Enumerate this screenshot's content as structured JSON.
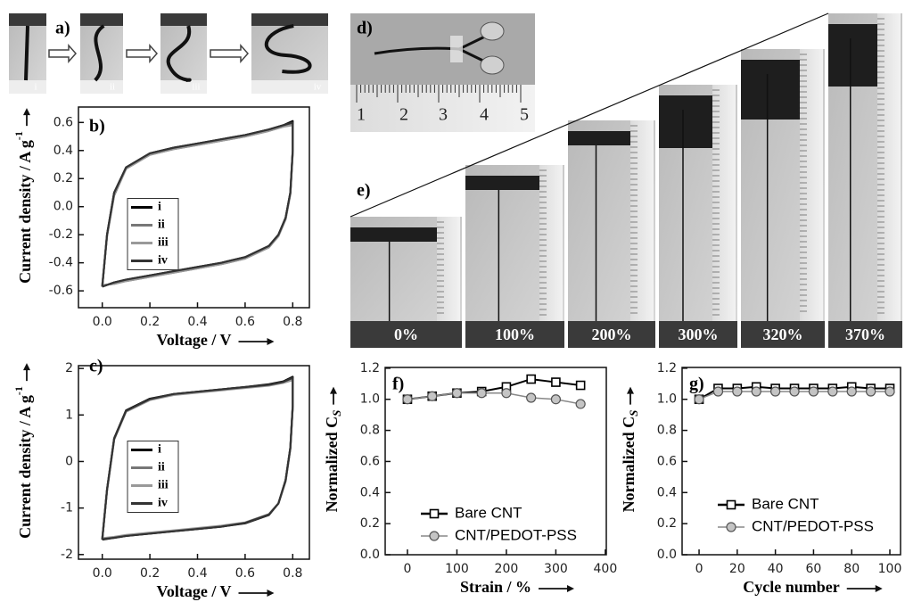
{
  "photos": {
    "a": {
      "label": "a)",
      "frames": [
        "i",
        "ii",
        "iii",
        "iv"
      ]
    },
    "d": {
      "label": "d)",
      "ruler": [
        "1",
        "2",
        "3",
        "4",
        "5"
      ]
    },
    "e": {
      "label": "e)",
      "frames": [
        "0%",
        "100%",
        "200%",
        "300%",
        "320%",
        "370%"
      ]
    }
  },
  "chart_data": [
    {
      "type": "line",
      "label": "b)",
      "xlabel": "Voltage / V",
      "ylabel": "Current density / A g",
      "ylabel_sup": "-1",
      "xlim": [
        -0.1,
        0.87
      ],
      "ylim": [
        -0.72,
        0.71
      ],
      "xticks": [
        {
          "value": 0,
          "label": "0.0"
        },
        0.2,
        0.4,
        0.6,
        0.8
      ],
      "yticks": [
        -0.6,
        -0.4,
        -0.2,
        {
          "value": 0,
          "label": "0.0"
        },
        0.2,
        0.4,
        0.6
      ],
      "legend": "left",
      "x": [
        0,
        0.02,
        0.05,
        0.1,
        0.2,
        0.3,
        0.4,
        0.5,
        0.6,
        0.7,
        0.76,
        0.8,
        0.8,
        0.79,
        0.77,
        0.74,
        0.7,
        0.6,
        0.5,
        0.4,
        0.3,
        0.2,
        0.1,
        0.05,
        0
      ],
      "series": [
        {
          "name": "i",
          "color": "#000000",
          "values": [
            -0.57,
            -0.2,
            0.1,
            0.28,
            0.38,
            0.42,
            0.45,
            0.48,
            0.51,
            0.55,
            0.58,
            0.61,
            0.4,
            0.1,
            -0.08,
            -0.2,
            -0.28,
            -0.36,
            -0.4,
            -0.43,
            -0.46,
            -0.49,
            -0.52,
            -0.54,
            -0.57
          ]
        },
        {
          "name": "ii",
          "color": "#777777",
          "values": [
            -0.56,
            -0.21,
            0.08,
            0.27,
            0.37,
            0.41,
            0.44,
            0.47,
            0.5,
            0.54,
            0.57,
            0.59,
            0.39,
            0.09,
            -0.09,
            -0.21,
            -0.29,
            -0.37,
            -0.41,
            -0.44,
            -0.47,
            -0.5,
            -0.53,
            -0.55,
            -0.56
          ]
        },
        {
          "name": "iii",
          "color": "#999999",
          "values": [
            -0.56,
            -0.21,
            0.09,
            0.27,
            0.37,
            0.41,
            0.44,
            0.47,
            0.5,
            0.54,
            0.57,
            0.58,
            0.38,
            0.09,
            -0.09,
            -0.21,
            -0.29,
            -0.37,
            -0.41,
            -0.44,
            -0.47,
            -0.5,
            -0.53,
            -0.55,
            -0.56
          ]
        },
        {
          "name": "iv",
          "color": "#333333",
          "values": [
            -0.57,
            -0.2,
            0.1,
            0.28,
            0.38,
            0.42,
            0.45,
            0.48,
            0.51,
            0.55,
            0.58,
            0.6,
            0.4,
            0.1,
            -0.08,
            -0.2,
            -0.28,
            -0.36,
            -0.4,
            -0.43,
            -0.46,
            -0.49,
            -0.52,
            -0.54,
            -0.57
          ]
        }
      ]
    },
    {
      "type": "line",
      "label": "c)",
      "xlabel": "Voltage / V",
      "ylabel": "Current density / A g",
      "ylabel_sup": "-1",
      "xlim": [
        -0.1,
        0.87
      ],
      "ylim": [
        -2.1,
        2.06
      ],
      "xticks": [
        {
          "value": 0,
          "label": "0.0"
        },
        0.2,
        0.4,
        0.6,
        0.8
      ],
      "yticks": [
        -2,
        -1,
        0,
        1,
        2
      ],
      "legend": "left",
      "x": [
        0,
        0.02,
        0.05,
        0.1,
        0.2,
        0.3,
        0.4,
        0.5,
        0.6,
        0.7,
        0.76,
        0.8,
        0.8,
        0.79,
        0.77,
        0.74,
        0.7,
        0.6,
        0.5,
        0.4,
        0.3,
        0.2,
        0.1,
        0.05,
        0
      ],
      "series": [
        {
          "name": "i",
          "color": "#000000",
          "values": [
            -1.68,
            -0.6,
            0.5,
            1.1,
            1.35,
            1.45,
            1.5,
            1.55,
            1.6,
            1.66,
            1.72,
            1.82,
            1.2,
            0.3,
            -0.4,
            -0.9,
            -1.15,
            -1.33,
            -1.4,
            -1.45,
            -1.5,
            -1.55,
            -1.6,
            -1.64,
            -1.68
          ]
        },
        {
          "name": "ii",
          "color": "#777777",
          "values": [
            -1.66,
            -0.62,
            0.48,
            1.08,
            1.33,
            1.44,
            1.49,
            1.54,
            1.59,
            1.64,
            1.7,
            1.78,
            1.18,
            0.28,
            -0.42,
            -0.9,
            -1.14,
            -1.32,
            -1.39,
            -1.44,
            -1.49,
            -1.54,
            -1.59,
            -1.63,
            -1.66
          ]
        },
        {
          "name": "iii",
          "color": "#999999",
          "values": [
            -1.65,
            -0.63,
            0.47,
            1.07,
            1.32,
            1.43,
            1.48,
            1.53,
            1.58,
            1.63,
            1.69,
            1.75,
            1.16,
            0.27,
            -0.43,
            -0.9,
            -1.13,
            -1.31,
            -1.38,
            -1.43,
            -1.48,
            -1.53,
            -1.58,
            -1.62,
            -1.65
          ]
        },
        {
          "name": "iv",
          "color": "#333333",
          "values": [
            -1.67,
            -0.61,
            0.49,
            1.09,
            1.34,
            1.45,
            1.5,
            1.55,
            1.6,
            1.65,
            1.71,
            1.8,
            1.19,
            0.29,
            -0.41,
            -0.9,
            -1.14,
            -1.32,
            -1.4,
            -1.45,
            -1.5,
            -1.55,
            -1.6,
            -1.64,
            -1.67
          ]
        }
      ]
    },
    {
      "type": "line",
      "label": "f)",
      "xlabel": "Strain / %",
      "ylabel": "Normalized C",
      "ylabel_sub": "S",
      "xlim": [
        -45,
        402
      ],
      "ylim": [
        0,
        1.205
      ],
      "xticks": [
        0,
        100,
        200,
        300,
        400
      ],
      "yticks": [
        {
          "value": 0,
          "label": "0.0"
        },
        0.2,
        0.4,
        0.6,
        0.8,
        {
          "value": 1,
          "label": "1.0"
        },
        1.2
      ],
      "legend": "lower left",
      "x": [
        0,
        50,
        100,
        150,
        200,
        250,
        300,
        350
      ],
      "series": [
        {
          "name": "Bare CNT",
          "color": "#000000",
          "marker": "square",
          "values": [
            1.0,
            1.02,
            1.04,
            1.05,
            1.08,
            1.13,
            1.11,
            1.09
          ]
        },
        {
          "name": "CNT/PEDOT-PSS",
          "color": "#888888",
          "marker": "circle",
          "values": [
            1.0,
            1.02,
            1.04,
            1.04,
            1.04,
            1.01,
            1.0,
            0.97
          ]
        }
      ]
    },
    {
      "type": "line",
      "label": "g)",
      "xlabel": "Cycle number",
      "ylabel": "Normalized C",
      "ylabel_sub": "S",
      "xlim": [
        -8.9,
        105.6
      ],
      "ylim": [
        0,
        1.205
      ],
      "xticks": [
        0,
        20,
        40,
        60,
        80,
        100
      ],
      "yticks": [
        {
          "value": 0,
          "label": "0.0"
        },
        0.2,
        0.4,
        0.6,
        0.8,
        {
          "value": 1,
          "label": "1.0"
        },
        1.2
      ],
      "legend": "lower left",
      "x": [
        0,
        10,
        20,
        30,
        40,
        50,
        60,
        70,
        80,
        90,
        100
      ],
      "series": [
        {
          "name": "Bare CNT",
          "color": "#000000",
          "marker": "square",
          "values": [
            1.0,
            1.07,
            1.07,
            1.08,
            1.07,
            1.07,
            1.07,
            1.07,
            1.08,
            1.07,
            1.07
          ]
        },
        {
          "name": "CNT/PEDOT-PSS",
          "color": "#888888",
          "marker": "circle",
          "values": [
            1.0,
            1.05,
            1.05,
            1.05,
            1.05,
            1.05,
            1.05,
            1.05,
            1.05,
            1.05,
            1.05
          ]
        }
      ]
    }
  ]
}
